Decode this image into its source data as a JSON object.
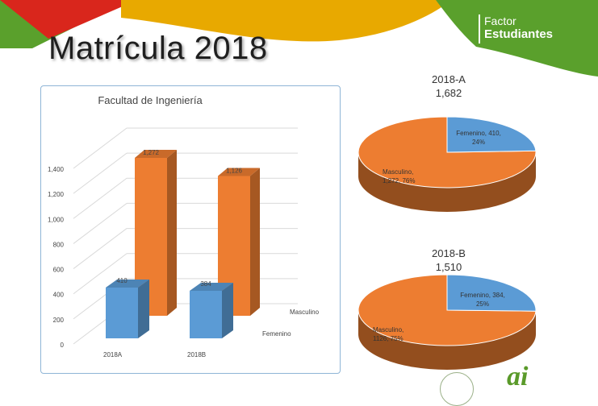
{
  "slide": {
    "title": "Matrícula 2018",
    "brand": {
      "line1": "Factor",
      "line2": "Estudiantes"
    },
    "footer_logo": "ai"
  },
  "colors": {
    "femenino": "#5b9bd5",
    "masculino": "#ed7d31",
    "banner_red": "#d9261c",
    "banner_yellow": "#e8a900",
    "banner_green": "#5aa02c"
  },
  "chart_data": [
    {
      "type": "bar",
      "title": "Facultad de Ingeniería",
      "categories": [
        "2018A",
        "2018B"
      ],
      "series": [
        {
          "name": "Femenino",
          "values": [
            410,
            384
          ]
        },
        {
          "name": "Masculino",
          "values": [
            1272,
            1126
          ]
        }
      ],
      "value_labels": {
        "Femenino": [
          "410",
          "384"
        ],
        "Masculino": [
          "1,272",
          "1,126"
        ]
      },
      "ylim": [
        0,
        1400
      ],
      "yticks": [
        "0",
        "200",
        "400",
        "600",
        "800",
        "1,000",
        "1,200",
        "1,400"
      ],
      "grid": true
    },
    {
      "type": "pie",
      "title": "2018-A",
      "subtitle": "1,682",
      "slices": [
        {
          "name": "Femenino",
          "value": 410,
          "label": "Femenino, 410, 24%"
        },
        {
          "name": "Masculino",
          "value": 1272,
          "label": "Masculino, 1,272, 76%"
        }
      ]
    },
    {
      "type": "pie",
      "title": "2018-B",
      "subtitle": "1,510",
      "slices": [
        {
          "name": "Femenino",
          "value": 384,
          "label": "Femenino, 384, 25%"
        },
        {
          "name": "Masculino",
          "value": 1126,
          "label": "Masculino, 1126, 75%"
        }
      ]
    }
  ]
}
